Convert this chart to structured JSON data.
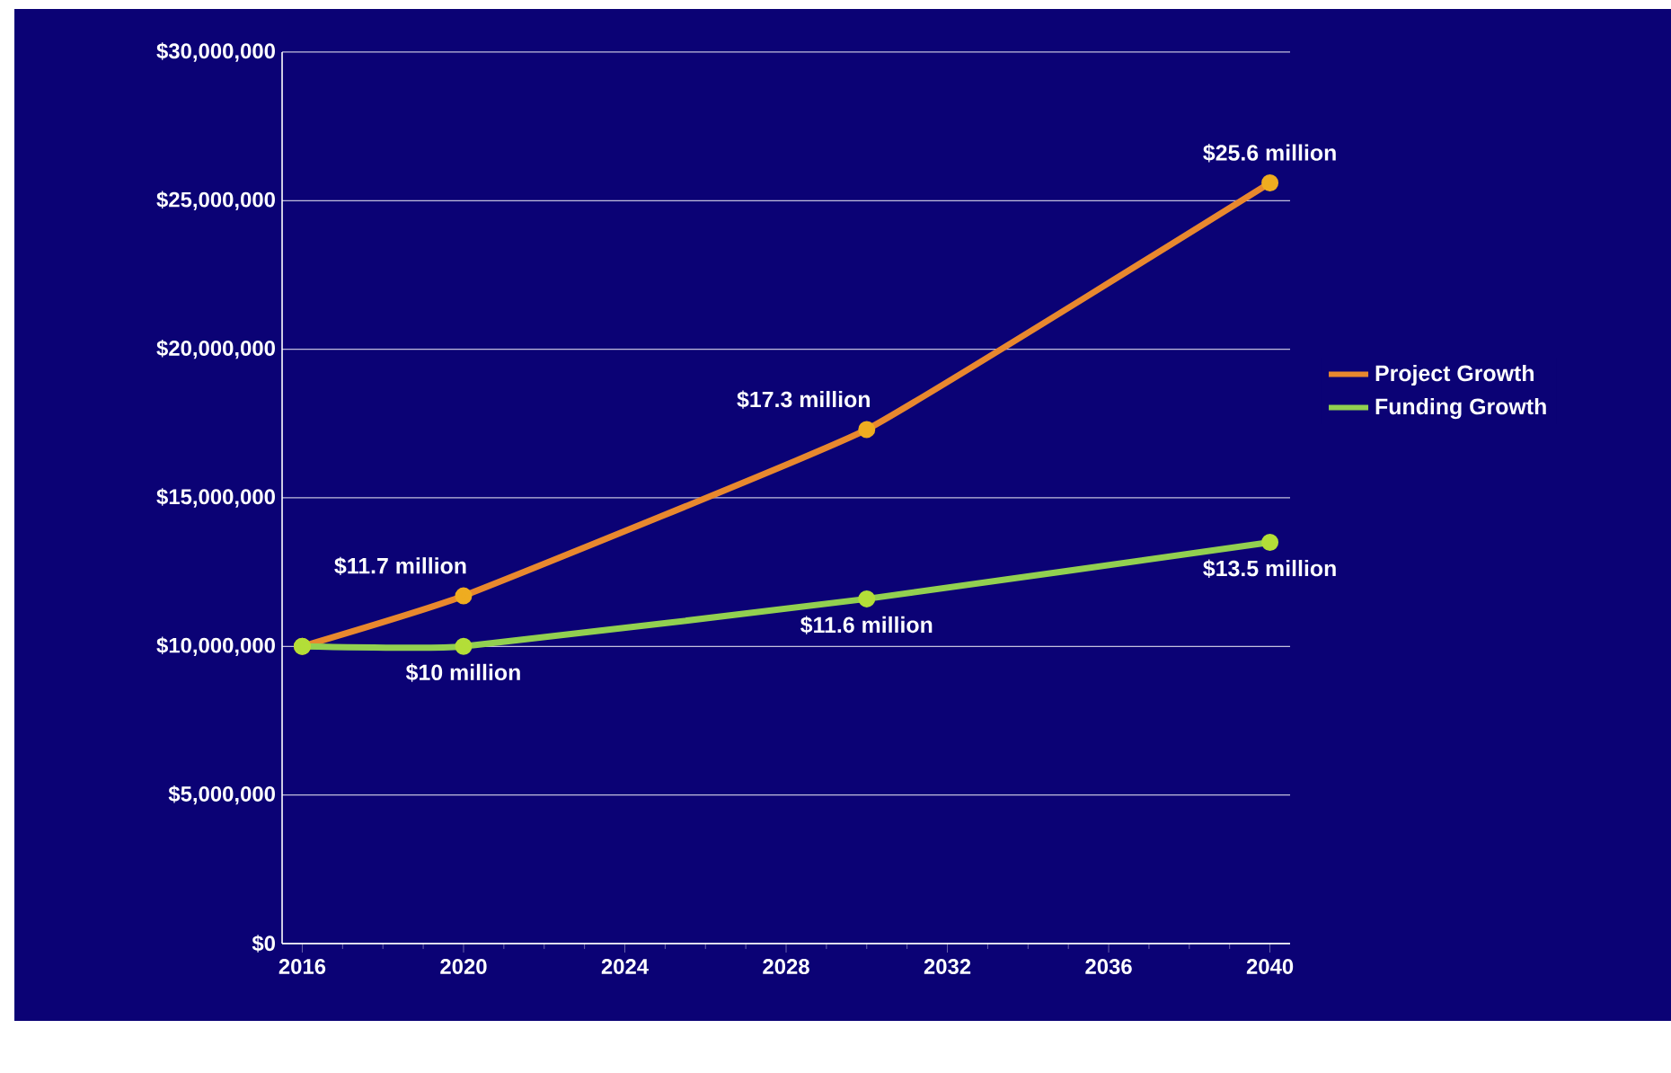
{
  "chart_data": {
    "type": "line",
    "xlim": [
      2015.5,
      2040.5
    ],
    "xticks": [
      2016,
      2020,
      2024,
      2028,
      2032,
      2036,
      2040
    ],
    "ylim": [
      0,
      30000000
    ],
    "yticks": [
      {
        "value": 0,
        "label": "$0"
      },
      {
        "value": 5000000,
        "label": "$5,000,000"
      },
      {
        "value": 10000000,
        "label": "$10,000,000"
      },
      {
        "value": 15000000,
        "label": "$15,000,000"
      },
      {
        "value": 20000000,
        "label": "$20,000,000"
      },
      {
        "value": 25000000,
        "label": "$25,000,000"
      },
      {
        "value": 30000000,
        "label": "$30,000,000"
      }
    ],
    "x": [
      2016,
      2020,
      2030,
      2040
    ],
    "series": [
      {
        "name": "Project Growth",
        "color": "#e8882e",
        "values": [
          10000000,
          11700000,
          17300000,
          25600000
        ],
        "value_labels": [
          null,
          "$11.7 million",
          "$17.3 million",
          "$25.6 million"
        ]
      },
      {
        "name": "Funding Growth",
        "color": "#92d050",
        "values": [
          10000000,
          10000000,
          11600000,
          13500000
        ],
        "value_labels": [
          null,
          "$10 million",
          "$11.6 million",
          "$13.5 million"
        ]
      }
    ],
    "grid": "y",
    "legend": "right",
    "marker": "circle",
    "line_style": "solid"
  }
}
